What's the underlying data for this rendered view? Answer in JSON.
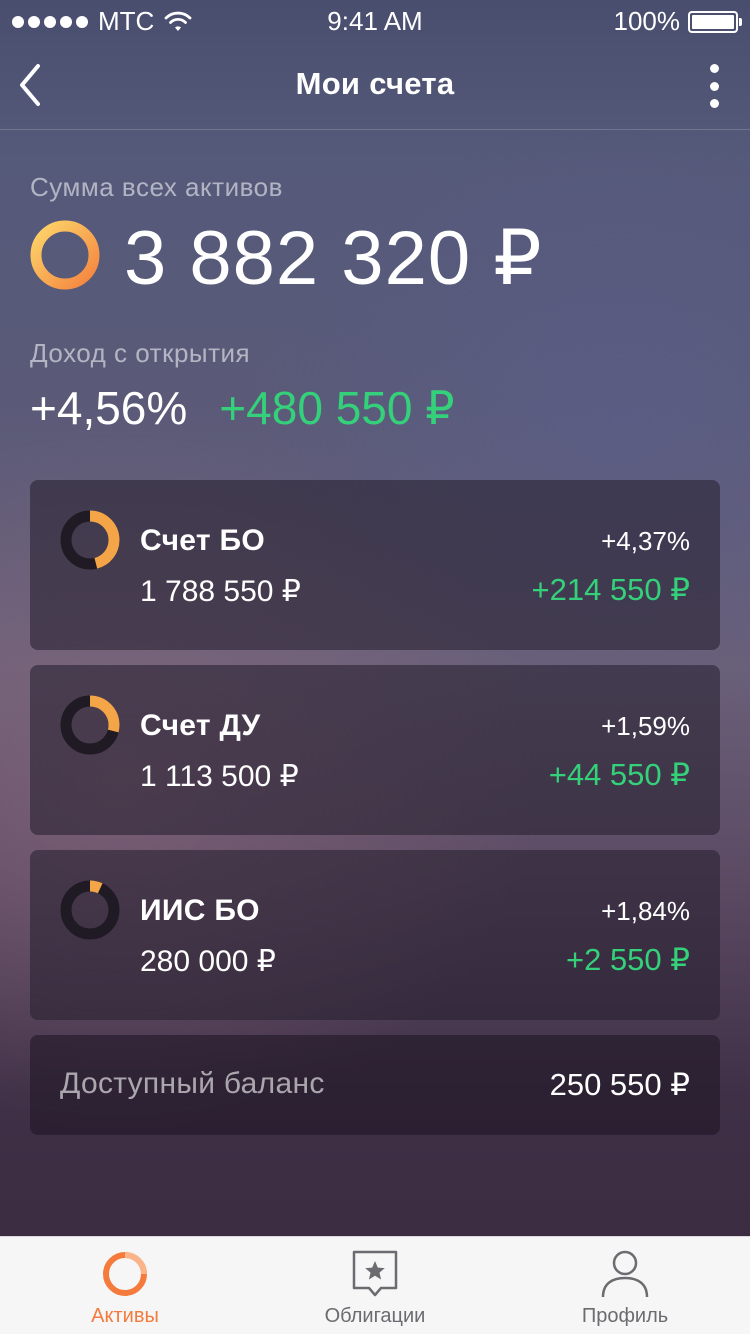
{
  "status_bar": {
    "carrier": "МТС",
    "time": "9:41 AM",
    "battery": "100%",
    "icons": [
      "signal-dots-icon",
      "wifi-icon",
      "battery-icon"
    ]
  },
  "nav": {
    "title": "Мои счета",
    "icons": [
      "chevron-left-icon",
      "more-vertical-icon"
    ]
  },
  "summary": {
    "label": "Сумма всех активов",
    "total": "3 882 320 ₽",
    "income_label": "Доход с открытия",
    "income_percent": "+4,56%",
    "income_amount": "+480 550 ₽"
  },
  "accounts": [
    {
      "name": "Счет БО",
      "balance": "1 788 550 ₽",
      "percent": "+4,37%",
      "gain": "+214 550 ₽",
      "share": 0.46
    },
    {
      "name": "Счет ДУ",
      "balance": "1 113 500 ₽",
      "percent": "+1,59%",
      "gain": "+44 550 ₽",
      "share": 0.29
    },
    {
      "name": "ИИС БО",
      "balance": "280 000 ₽",
      "percent": "+1,84%",
      "gain": "+2 550 ₽",
      "share": 0.07
    }
  ],
  "available_balance": {
    "label": "Доступный баланс",
    "value": "250 550 ₽"
  },
  "tabs": [
    {
      "label": "Активы",
      "icon": "assets-ring-icon",
      "active": true
    },
    {
      "label": "Облигации",
      "icon": "bonds-star-icon",
      "active": false
    },
    {
      "label": "Профиль",
      "icon": "profile-person-icon",
      "active": false
    }
  ],
  "colors": {
    "accent": "#f47b3b",
    "ring_yellow": "#fdd66a",
    "ring_orange": "#f4833f",
    "ring_track": "#1f1a24",
    "positive": "#34d17a",
    "tab_inactive": "#6b6b70"
  }
}
